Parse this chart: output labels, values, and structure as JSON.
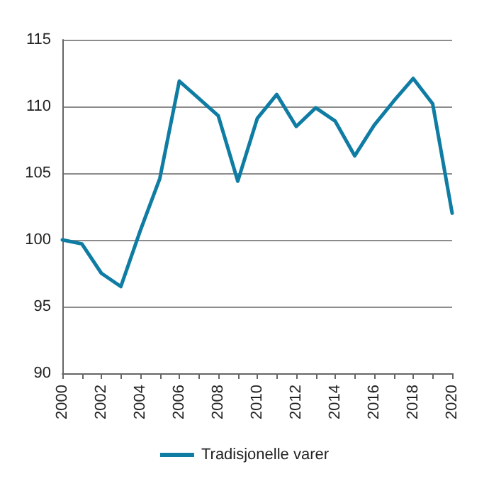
{
  "chart_data": {
    "type": "line",
    "x": [
      2000,
      2001,
      2002,
      2003,
      2004,
      2005,
      2006,
      2007,
      2008,
      2009,
      2010,
      2011,
      2012,
      2013,
      2014,
      2015,
      2016,
      2017,
      2018,
      2019,
      2020
    ],
    "series": [
      {
        "name": "Tradisjonelle varer",
        "color": "#0f7ca3",
        "values": [
          100,
          99.7,
          97.5,
          96.5,
          100.7,
          104.6,
          111.9,
          110.6,
          109.3,
          104.4,
          109.1,
          110.9,
          108.5,
          109.9,
          108.9,
          106.3,
          108.6,
          110.4,
          112.1,
          110.2,
          102.0
        ]
      }
    ],
    "xlim": [
      2000,
      2020
    ],
    "xticks": [
      2000,
      {
        "value": 2001,
        "label": null
      },
      2002,
      {
        "value": 2003,
        "label": null
      },
      2004,
      {
        "value": 2005,
        "label": null
      },
      2006,
      {
        "value": 2007,
        "label": null
      },
      2008,
      {
        "value": 2009,
        "label": null
      },
      2010,
      {
        "value": 2011,
        "label": null
      },
      2012,
      {
        "value": 2013,
        "label": null
      },
      2014,
      {
        "value": 2015,
        "label": null
      },
      2016,
      {
        "value": 2017,
        "label": null
      },
      2018,
      {
        "value": 2019,
        "label": null
      },
      2020
    ],
    "ylim": [
      90,
      115
    ],
    "yticks": [
      90,
      95,
      100,
      105,
      110,
      115
    ],
    "grid": "y",
    "legend": "bottom",
    "marker": "none",
    "line_style": "solid"
  }
}
